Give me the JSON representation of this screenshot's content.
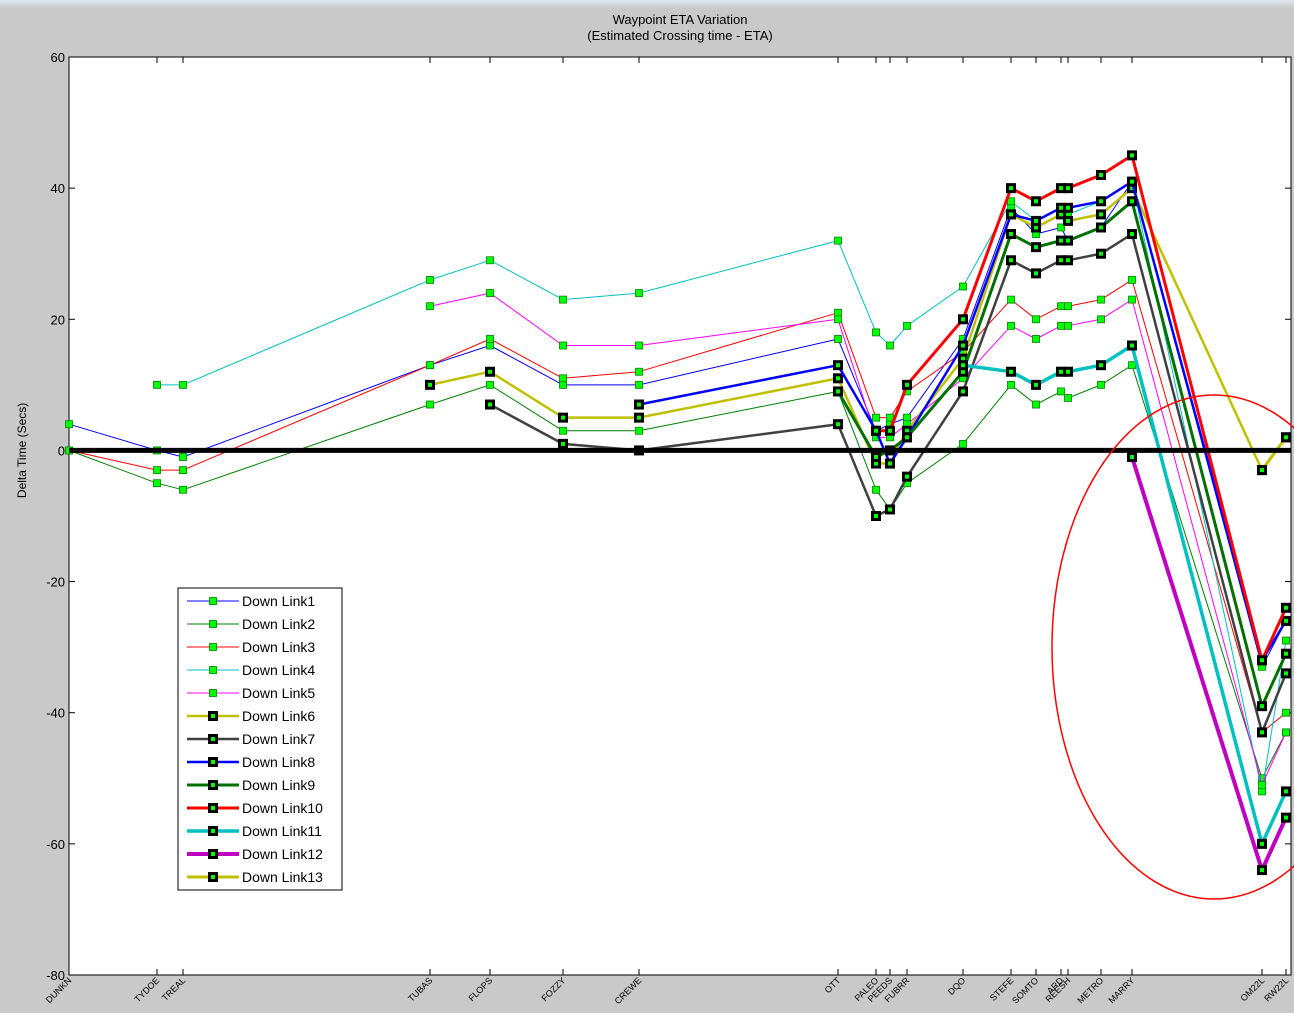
{
  "chart_data": {
    "type": "line",
    "title": "Waypoint ETA Variation",
    "subtitle": "(Estimated Crossing time - ETA)",
    "xlabel": "",
    "ylabel": "Delta Time (Secs)",
    "ylim": [
      -80,
      60
    ],
    "yticks": [
      60,
      40,
      20,
      0,
      -20,
      -40,
      -60,
      -80
    ],
    "ytick_labels": [
      "60",
      "40",
      "20",
      "0",
      "-20",
      "-40",
      "-60",
      "-80"
    ],
    "grid": false,
    "legend_position": "bottom-left",
    "x_min": 0,
    "x_max": 1222,
    "waypoints": [
      {
        "name": "DUNKN",
        "x": 0
      },
      {
        "name": "TYDOE",
        "x": 88
      },
      {
        "name": "TREAL",
        "x": 114
      },
      {
        "name": "TUBAS",
        "x": 361
      },
      {
        "name": "FLOPS",
        "x": 421
      },
      {
        "name": "FOZZY",
        "x": 494
      },
      {
        "name": "CREWE",
        "x": 570
      },
      {
        "name": "OTT",
        "x": 769
      },
      {
        "name": "PALEO",
        "x": 807
      },
      {
        "name": "PEEDS",
        "x": 821
      },
      {
        "name": "FUBRR",
        "x": 838
      },
      {
        "name": "DQO",
        "x": 894
      },
      {
        "name": "STEFE",
        "x": 942
      },
      {
        "name": "SOMTO",
        "x": 967
      },
      {
        "name": "ARD",
        "x": 992
      },
      {
        "name": "REESH",
        "x": 999
      },
      {
        "name": "METRO",
        "x": 1032
      },
      {
        "name": "MARRY",
        "x": 1063
      },
      {
        "name": "OM22L",
        "x": 1193
      },
      {
        "name": "RW22L",
        "x": 1217
      }
    ],
    "series": [
      {
        "name": "Down Link1",
        "color": "#0000ff",
        "width": 1,
        "thick_marker": false,
        "points": [
          [
            0,
            4
          ],
          [
            88,
            0
          ],
          [
            114,
            -1
          ],
          [
            361,
            13
          ],
          [
            421,
            16
          ],
          [
            494,
            10
          ],
          [
            570,
            10
          ],
          [
            769,
            17
          ],
          [
            807,
            3
          ],
          [
            821,
            4
          ],
          [
            838,
            5
          ],
          [
            894,
            17
          ],
          [
            942,
            37
          ],
          [
            967,
            33
          ],
          [
            992,
            34
          ],
          [
            999,
            32
          ],
          [
            1032,
            34
          ],
          [
            1063,
            41
          ],
          [
            1193,
            -33
          ],
          [
            1217,
            -26
          ]
        ]
      },
      {
        "name": "Down Link2",
        "color": "#008000",
        "width": 1,
        "thick_marker": false,
        "points": [
          [
            0,
            0
          ],
          [
            88,
            -5
          ],
          [
            114,
            -6
          ],
          [
            361,
            7
          ],
          [
            421,
            10
          ],
          [
            494,
            3
          ],
          [
            570,
            3
          ],
          [
            769,
            9
          ],
          [
            807,
            -6
          ],
          [
            821,
            -9
          ],
          [
            838,
            -5
          ],
          [
            894,
            1
          ],
          [
            942,
            10
          ],
          [
            967,
            7
          ],
          [
            992,
            9
          ],
          [
            999,
            8
          ],
          [
            1032,
            10
          ],
          [
            1063,
            13
          ],
          [
            1193,
            -50
          ],
          [
            1217,
            -43
          ]
        ]
      },
      {
        "name": "Down Link3",
        "color": "#ff0000",
        "width": 1,
        "thick_marker": false,
        "points": [
          [
            0,
            0
          ],
          [
            88,
            -3
          ],
          [
            114,
            -3
          ],
          [
            361,
            13
          ],
          [
            421,
            17
          ],
          [
            494,
            11
          ],
          [
            570,
            12
          ],
          [
            769,
            21
          ],
          [
            807,
            5
          ],
          [
            821,
            5
          ],
          [
            838,
            9
          ],
          [
            894,
            15
          ],
          [
            942,
            23
          ],
          [
            967,
            20
          ],
          [
            992,
            22
          ],
          [
            999,
            22
          ],
          [
            1032,
            23
          ],
          [
            1063,
            26
          ],
          [
            1193,
            -43
          ],
          [
            1217,
            -40
          ]
        ]
      },
      {
        "name": "Down Link4",
        "color": "#00c0c0",
        "width": 1,
        "thick_marker": false,
        "points": [
          [
            88,
            10
          ],
          [
            114,
            10
          ],
          [
            361,
            26
          ],
          [
            421,
            29
          ],
          [
            494,
            23
          ],
          [
            570,
            24
          ],
          [
            769,
            32
          ],
          [
            807,
            18
          ],
          [
            821,
            16
          ],
          [
            838,
            19
          ],
          [
            894,
            25
          ],
          [
            942,
            38
          ],
          [
            967,
            35
          ],
          [
            992,
            37
          ],
          [
            999,
            36
          ],
          [
            1032,
            38
          ],
          [
            1063,
            41
          ],
          [
            1193,
            -52
          ],
          [
            1217,
            -29
          ]
        ]
      },
      {
        "name": "Down Link5",
        "color": "#ff00ff",
        "width": 1,
        "thick_marker": false,
        "points": [
          [
            361,
            22
          ],
          [
            421,
            24
          ],
          [
            494,
            16
          ],
          [
            570,
            16
          ],
          [
            769,
            20
          ],
          [
            807,
            2
          ],
          [
            821,
            2
          ],
          [
            838,
            4
          ],
          [
            894,
            11
          ],
          [
            942,
            19
          ],
          [
            967,
            17
          ],
          [
            992,
            19
          ],
          [
            999,
            19
          ],
          [
            1032,
            20
          ],
          [
            1063,
            23
          ],
          [
            1193,
            -51
          ],
          [
            1217,
            -43
          ]
        ]
      },
      {
        "name": "Down Link6",
        "color": "#c0c000",
        "width": 2.5,
        "thick_marker": true,
        "points": [
          [
            361,
            10
          ],
          [
            421,
            12
          ],
          [
            494,
            5
          ],
          [
            570,
            5
          ],
          [
            769,
            11
          ],
          [
            807,
            -2
          ],
          [
            821,
            -2
          ],
          [
            838,
            3
          ],
          [
            894,
            14
          ],
          [
            942,
            36
          ],
          [
            967,
            34
          ],
          [
            992,
            36
          ],
          [
            999,
            35
          ],
          [
            1032,
            36
          ],
          [
            1063,
            40
          ],
          [
            1193,
            -3
          ],
          [
            1217,
            2
          ]
        ]
      },
      {
        "name": "Down Link7",
        "color": "#404040",
        "width": 2.5,
        "thick_marker": true,
        "points": [
          [
            421,
            7
          ],
          [
            494,
            1
          ],
          [
            570,
            0
          ],
          [
            769,
            4
          ],
          [
            807,
            -10
          ],
          [
            821,
            -9
          ],
          [
            838,
            -4
          ],
          [
            894,
            9
          ],
          [
            942,
            29
          ],
          [
            967,
            27
          ],
          [
            992,
            29
          ],
          [
            999,
            29
          ],
          [
            1032,
            30
          ],
          [
            1063,
            33
          ],
          [
            1193,
            -43
          ],
          [
            1217,
            -34
          ]
        ]
      },
      {
        "name": "Down Link8",
        "color": "#0000ff",
        "width": 2.5,
        "thick_marker": true,
        "points": [
          [
            570,
            7
          ],
          [
            769,
            13
          ],
          [
            807,
            3
          ],
          [
            821,
            -2
          ],
          [
            838,
            2
          ],
          [
            894,
            16
          ],
          [
            942,
            36
          ],
          [
            967,
            35
          ],
          [
            992,
            37
          ],
          [
            999,
            37
          ],
          [
            1032,
            38
          ],
          [
            1063,
            41
          ],
          [
            1193,
            -32
          ],
          [
            1217,
            -26
          ]
        ]
      },
      {
        "name": "Down Link9",
        "color": "#007000",
        "width": 3,
        "thick_marker": true,
        "points": [
          [
            769,
            9
          ],
          [
            807,
            -1
          ],
          [
            821,
            0
          ],
          [
            838,
            2
          ],
          [
            894,
            12
          ],
          [
            942,
            33
          ],
          [
            967,
            31
          ],
          [
            992,
            32
          ],
          [
            999,
            32
          ],
          [
            1032,
            34
          ],
          [
            1063,
            38
          ],
          [
            1193,
            -39
          ],
          [
            1217,
            -31
          ]
        ]
      },
      {
        "name": "Down Link10",
        "color": "#ff0000",
        "width": 3,
        "thick_marker": true,
        "points": [
          [
            807,
            3
          ],
          [
            821,
            3
          ],
          [
            838,
            10
          ],
          [
            894,
            20
          ],
          [
            942,
            40
          ],
          [
            967,
            38
          ],
          [
            992,
            40
          ],
          [
            999,
            40
          ],
          [
            1032,
            42
          ],
          [
            1063,
            45
          ],
          [
            1193,
            -32
          ],
          [
            1217,
            -24
          ]
        ]
      },
      {
        "name": "Down Link11",
        "color": "#00c0c0",
        "width": 3.5,
        "thick_marker": true,
        "points": [
          [
            894,
            13
          ],
          [
            942,
            12
          ],
          [
            967,
            10
          ],
          [
            992,
            12
          ],
          [
            999,
            12
          ],
          [
            1032,
            13
          ],
          [
            1063,
            16
          ],
          [
            1193,
            -60
          ],
          [
            1217,
            -52
          ]
        ]
      },
      {
        "name": "Down Link12",
        "color": "#c000c0",
        "width": 4,
        "thick_marker": true,
        "points": [
          [
            1063,
            -1
          ],
          [
            1193,
            -64
          ],
          [
            1217,
            -56
          ]
        ]
      },
      {
        "name": "Down Link13",
        "color": "#c0c000",
        "width": 3,
        "thick_marker": true,
        "points": [
          [
            1193,
            -3
          ],
          [
            1217,
            2
          ]
        ]
      }
    ]
  }
}
